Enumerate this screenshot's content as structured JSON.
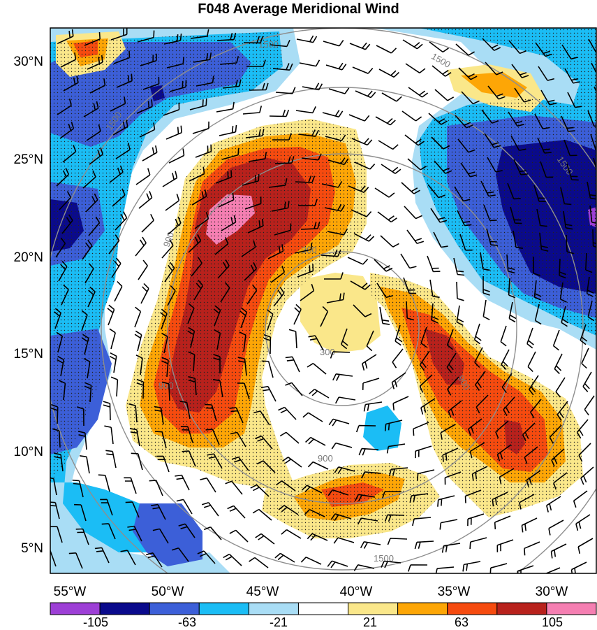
{
  "title": "F048 Average Meridional Wind",
  "lat_labels": [
    "30°N",
    "25°N",
    "20°N",
    "15°N",
    "10°N",
    "5°N"
  ],
  "lon_labels": [
    "55°W",
    "50°W",
    "45°W",
    "40°W",
    "35°W",
    "30°W"
  ],
  "height_contours": {
    "levels": [
      300,
      900,
      1500
    ],
    "labels": [
      "300",
      "300",
      "900",
      "900",
      "900",
      "900",
      "1500",
      "1500",
      "1500",
      "1500",
      "1500"
    ]
  },
  "colorbar": {
    "colors": [
      "#9d3fd6",
      "#0a0a8c",
      "#3c5fd8",
      "#1bbdf5",
      "#a9ddf5",
      "#ffffff",
      "#fae78a",
      "#fda606",
      "#f64b0f",
      "#b8211c",
      "#f57fb2"
    ],
    "tick_labels": [
      "-105",
      "-63",
      "-21",
      "21",
      "63",
      "105"
    ]
  }
}
